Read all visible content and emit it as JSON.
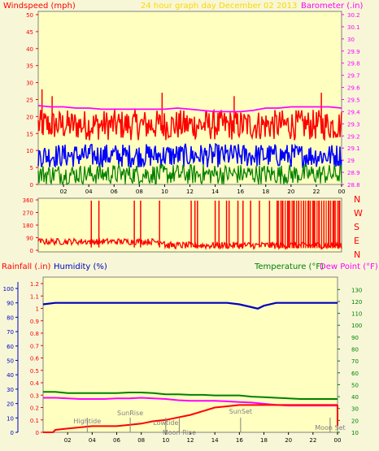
{
  "header": {
    "left_label": "Windspeed (mph)",
    "center_label": "24 hour graph day   December 02 2013",
    "right_label": "Barometer (.in)"
  },
  "mid": {
    "compass_letters": [
      "N",
      "W",
      "S",
      "E",
      "N"
    ]
  },
  "bottom_header": {
    "rainfall_label": "Rainfall (.in)",
    "humidity_label": "Humidity (%)",
    "temperature_label": "Temperature (°F)",
    "dewpoint_label": "Dew Point (°F)"
  },
  "colors": {
    "plot_bg": "#ffffc0",
    "page_bg": "#f7f7d8",
    "wind_red": "#ff0000",
    "wind_blue": "#0000ff",
    "wind_green": "#008000",
    "barometer": "#ff00ff",
    "humidity": "#0000c0",
    "temperature": "#008000",
    "dewpoint": "#ff00ff",
    "rainfall": "#ff0000",
    "header_yellow": "#ffd700",
    "events": "#808080",
    "axis_text": "#000000"
  },
  "chart_data": [
    {
      "type": "line",
      "name": "wind_barometer",
      "x_ticks": [
        "02",
        "04",
        "06",
        "08",
        "10",
        "12",
        "14",
        "16",
        "18",
        "20",
        "22",
        "00"
      ],
      "y_left_ticks": [
        "0",
        "5",
        "10",
        "15",
        "20",
        "25",
        "30",
        "35",
        "40",
        "45",
        "50"
      ],
      "y_left_range": [
        0,
        50
      ],
      "y_right_ticks": [
        "28.8",
        "28.9",
        "29",
        "29.1",
        "29.2",
        "29.3",
        "29.4",
        "29.5",
        "29.6",
        "29.7",
        "29.8",
        "29.9",
        "30",
        "30.1",
        "30.2"
      ],
      "y_right_range": [
        28.8,
        30.2
      ],
      "barometer_points": [
        [
          0,
          29.45
        ],
        [
          1,
          29.44
        ],
        [
          2,
          29.44
        ],
        [
          3,
          29.43
        ],
        [
          4,
          29.43
        ],
        [
          5,
          29.42
        ],
        [
          6,
          29.42
        ],
        [
          7,
          29.42
        ],
        [
          8,
          29.42
        ],
        [
          9,
          29.42
        ],
        [
          10,
          29.42
        ],
        [
          11,
          29.43
        ],
        [
          12,
          29.42
        ],
        [
          13,
          29.41
        ],
        [
          14,
          29.4
        ],
        [
          15,
          29.4
        ],
        [
          16,
          29.4
        ],
        [
          17,
          29.41
        ],
        [
          18,
          29.43
        ],
        [
          19,
          29.43
        ],
        [
          20,
          29.44
        ],
        [
          21,
          29.44
        ],
        [
          22,
          29.44
        ],
        [
          23,
          29.44
        ],
        [
          24,
          29.43
        ]
      ],
      "wind_gust_band": [
        13,
        22
      ],
      "wind_avg_band": [
        5,
        12
      ],
      "wind_low_band": [
        0,
        6
      ]
    },
    {
      "type": "scatter",
      "name": "wind_direction",
      "y_ticks": [
        "0",
        "90",
        "180",
        "270",
        "360"
      ],
      "y_range": [
        0,
        360
      ],
      "spikes_hours": [
        4.2,
        4.8,
        7.6,
        8.1,
        9.6,
        12.1,
        12.4,
        12.6,
        14.0,
        14.3,
        14.9,
        15.1,
        15.8,
        16.2,
        16.8,
        17.5,
        18.3,
        18.9,
        19.3,
        19.8,
        20.2,
        20.6,
        21.0,
        21.4,
        21.8,
        22.2,
        22.6,
        23.0,
        23.4,
        23.8
      ]
    },
    {
      "type": "line",
      "name": "rain_humidity_temp",
      "x_ticks": [
        "02",
        "04",
        "06",
        "08",
        "10",
        "12",
        "14",
        "16",
        "18",
        "20",
        "22",
        "00"
      ],
      "y_left_ticks": [
        "0",
        "10",
        "20",
        "30",
        "40",
        "50",
        "60",
        "70",
        "80",
        "90",
        "100"
      ],
      "y_left_range": [
        0,
        100
      ],
      "y_rain_ticks": [
        "0",
        "0.1",
        "0.2",
        "0.3",
        "0.4",
        "0.5",
        "0.6",
        "0.7",
        "0.8",
        "0.9",
        "1",
        "1.1",
        "1.2"
      ],
      "y_rain_range": [
        0,
        1.2
      ],
      "y_right_ticks": [
        "10",
        "20",
        "30",
        "40",
        "50",
        "60",
        "70",
        "80",
        "90",
        "100",
        "110",
        "120",
        "130"
      ],
      "y_right_range": [
        10,
        135
      ],
      "humidity_points": [
        [
          0,
          89
        ],
        [
          1,
          90
        ],
        [
          2,
          90
        ],
        [
          4,
          90
        ],
        [
          6,
          90
        ],
        [
          8,
          90
        ],
        [
          10,
          90
        ],
        [
          12,
          90
        ],
        [
          14,
          90
        ],
        [
          15,
          90
        ],
        [
          16,
          89
        ],
        [
          17,
          87
        ],
        [
          17.5,
          86
        ],
        [
          18,
          88
        ],
        [
          19,
          90
        ],
        [
          20,
          90
        ],
        [
          22,
          90
        ],
        [
          24,
          90
        ]
      ],
      "temperature_points": [
        [
          0,
          44
        ],
        [
          1,
          44
        ],
        [
          2,
          43
        ],
        [
          3,
          43
        ],
        [
          4,
          43
        ],
        [
          5,
          43
        ],
        [
          6,
          43
        ],
        [
          7,
          43.5
        ],
        [
          8,
          43.5
        ],
        [
          9,
          43
        ],
        [
          10,
          42
        ],
        [
          11,
          42
        ],
        [
          12,
          41.5
        ],
        [
          13,
          41.5
        ],
        [
          14,
          41
        ],
        [
          15,
          41
        ],
        [
          16,
          41
        ],
        [
          17,
          40
        ],
        [
          18,
          39.5
        ],
        [
          19,
          39
        ],
        [
          20,
          38.5
        ],
        [
          21,
          38
        ],
        [
          22,
          38
        ],
        [
          23,
          38
        ],
        [
          24,
          38
        ]
      ],
      "dewpoint_points": [
        [
          0,
          39
        ],
        [
          1,
          39
        ],
        [
          2,
          38.5
        ],
        [
          3,
          38
        ],
        [
          4,
          38
        ],
        [
          5,
          38
        ],
        [
          6,
          38.5
        ],
        [
          7,
          38.5
        ],
        [
          8,
          39
        ],
        [
          9,
          38.5
        ],
        [
          10,
          38
        ],
        [
          11,
          37
        ],
        [
          12,
          36.5
        ],
        [
          13,
          36.5
        ],
        [
          14,
          36.5
        ],
        [
          15,
          36
        ],
        [
          16,
          35.5
        ],
        [
          17,
          35
        ],
        [
          18,
          34
        ],
        [
          19,
          33
        ],
        [
          20,
          32.5
        ],
        [
          21,
          32.5
        ],
        [
          22,
          32.5
        ],
        [
          23,
          32.5
        ],
        [
          24,
          32.5
        ]
      ],
      "rainfall_points": [
        [
          0,
          0.0
        ],
        [
          0.8,
          0.0
        ],
        [
          1,
          0.02
        ],
        [
          2,
          0.03
        ],
        [
          3,
          0.04
        ],
        [
          4,
          0.05
        ],
        [
          5,
          0.05
        ],
        [
          6,
          0.05
        ],
        [
          7,
          0.06
        ],
        [
          8,
          0.07
        ],
        [
          9,
          0.09
        ],
        [
          10,
          0.1
        ],
        [
          11,
          0.12
        ],
        [
          12,
          0.14
        ],
        [
          13,
          0.17
        ],
        [
          14,
          0.2
        ],
        [
          15,
          0.21
        ],
        [
          16,
          0.22
        ],
        [
          17,
          0.22
        ],
        [
          18,
          0.22
        ],
        [
          19,
          0.22
        ],
        [
          20,
          0.22
        ],
        [
          21,
          0.22
        ],
        [
          22,
          0.22
        ],
        [
          23,
          0.22
        ],
        [
          24,
          0.22
        ]
      ],
      "events": [
        {
          "label": "Hightide",
          "hour": 3.6
        },
        {
          "label": "SunRise",
          "hour": 7.1
        },
        {
          "label": "Lowtide",
          "hour": 10.0
        },
        {
          "label": "Moon Rise",
          "hour": 11.1
        },
        {
          "label": "SunSet",
          "hour": 16.1
        },
        {
          "label": "Moon Set",
          "hour": 23.4
        }
      ]
    }
  ]
}
